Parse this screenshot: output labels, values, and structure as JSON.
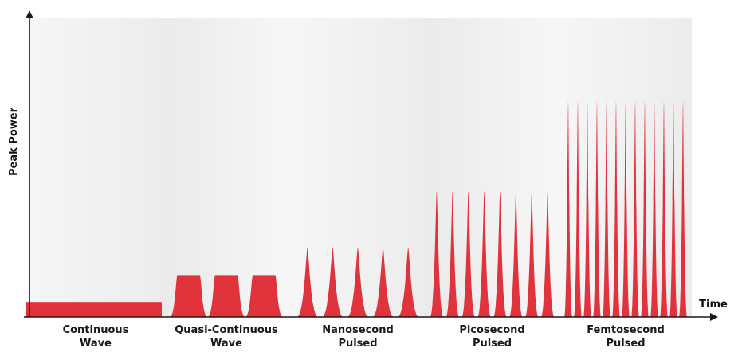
{
  "diagram": {
    "y_axis_label": "Peak Power",
    "x_axis_label": "Time",
    "pulse_color": "#e0333c",
    "axis_color": "#1a1a1a",
    "categories": [
      {
        "line1": "Continuous",
        "line2": "Wave",
        "shape": "constant",
        "relative_peak_power": 0.05,
        "pulse_count": 0
      },
      {
        "line1": "Quasi-Continuous",
        "line2": "Wave",
        "shape": "trapezoid",
        "relative_peak_power": 0.14,
        "pulse_count": 3
      },
      {
        "line1": "Nanosecond",
        "line2": "Pulsed",
        "shape": "pulse",
        "relative_peak_power": 0.23,
        "pulse_count": 5
      },
      {
        "line1": "Picosecond",
        "line2": "Pulsed",
        "shape": "pulse",
        "relative_peak_power": 0.42,
        "pulse_count": 8
      },
      {
        "line1": "Femtosecond",
        "line2": "Pulsed",
        "shape": "pulse",
        "relative_peak_power": 0.72,
        "pulse_count": 13
      }
    ]
  }
}
